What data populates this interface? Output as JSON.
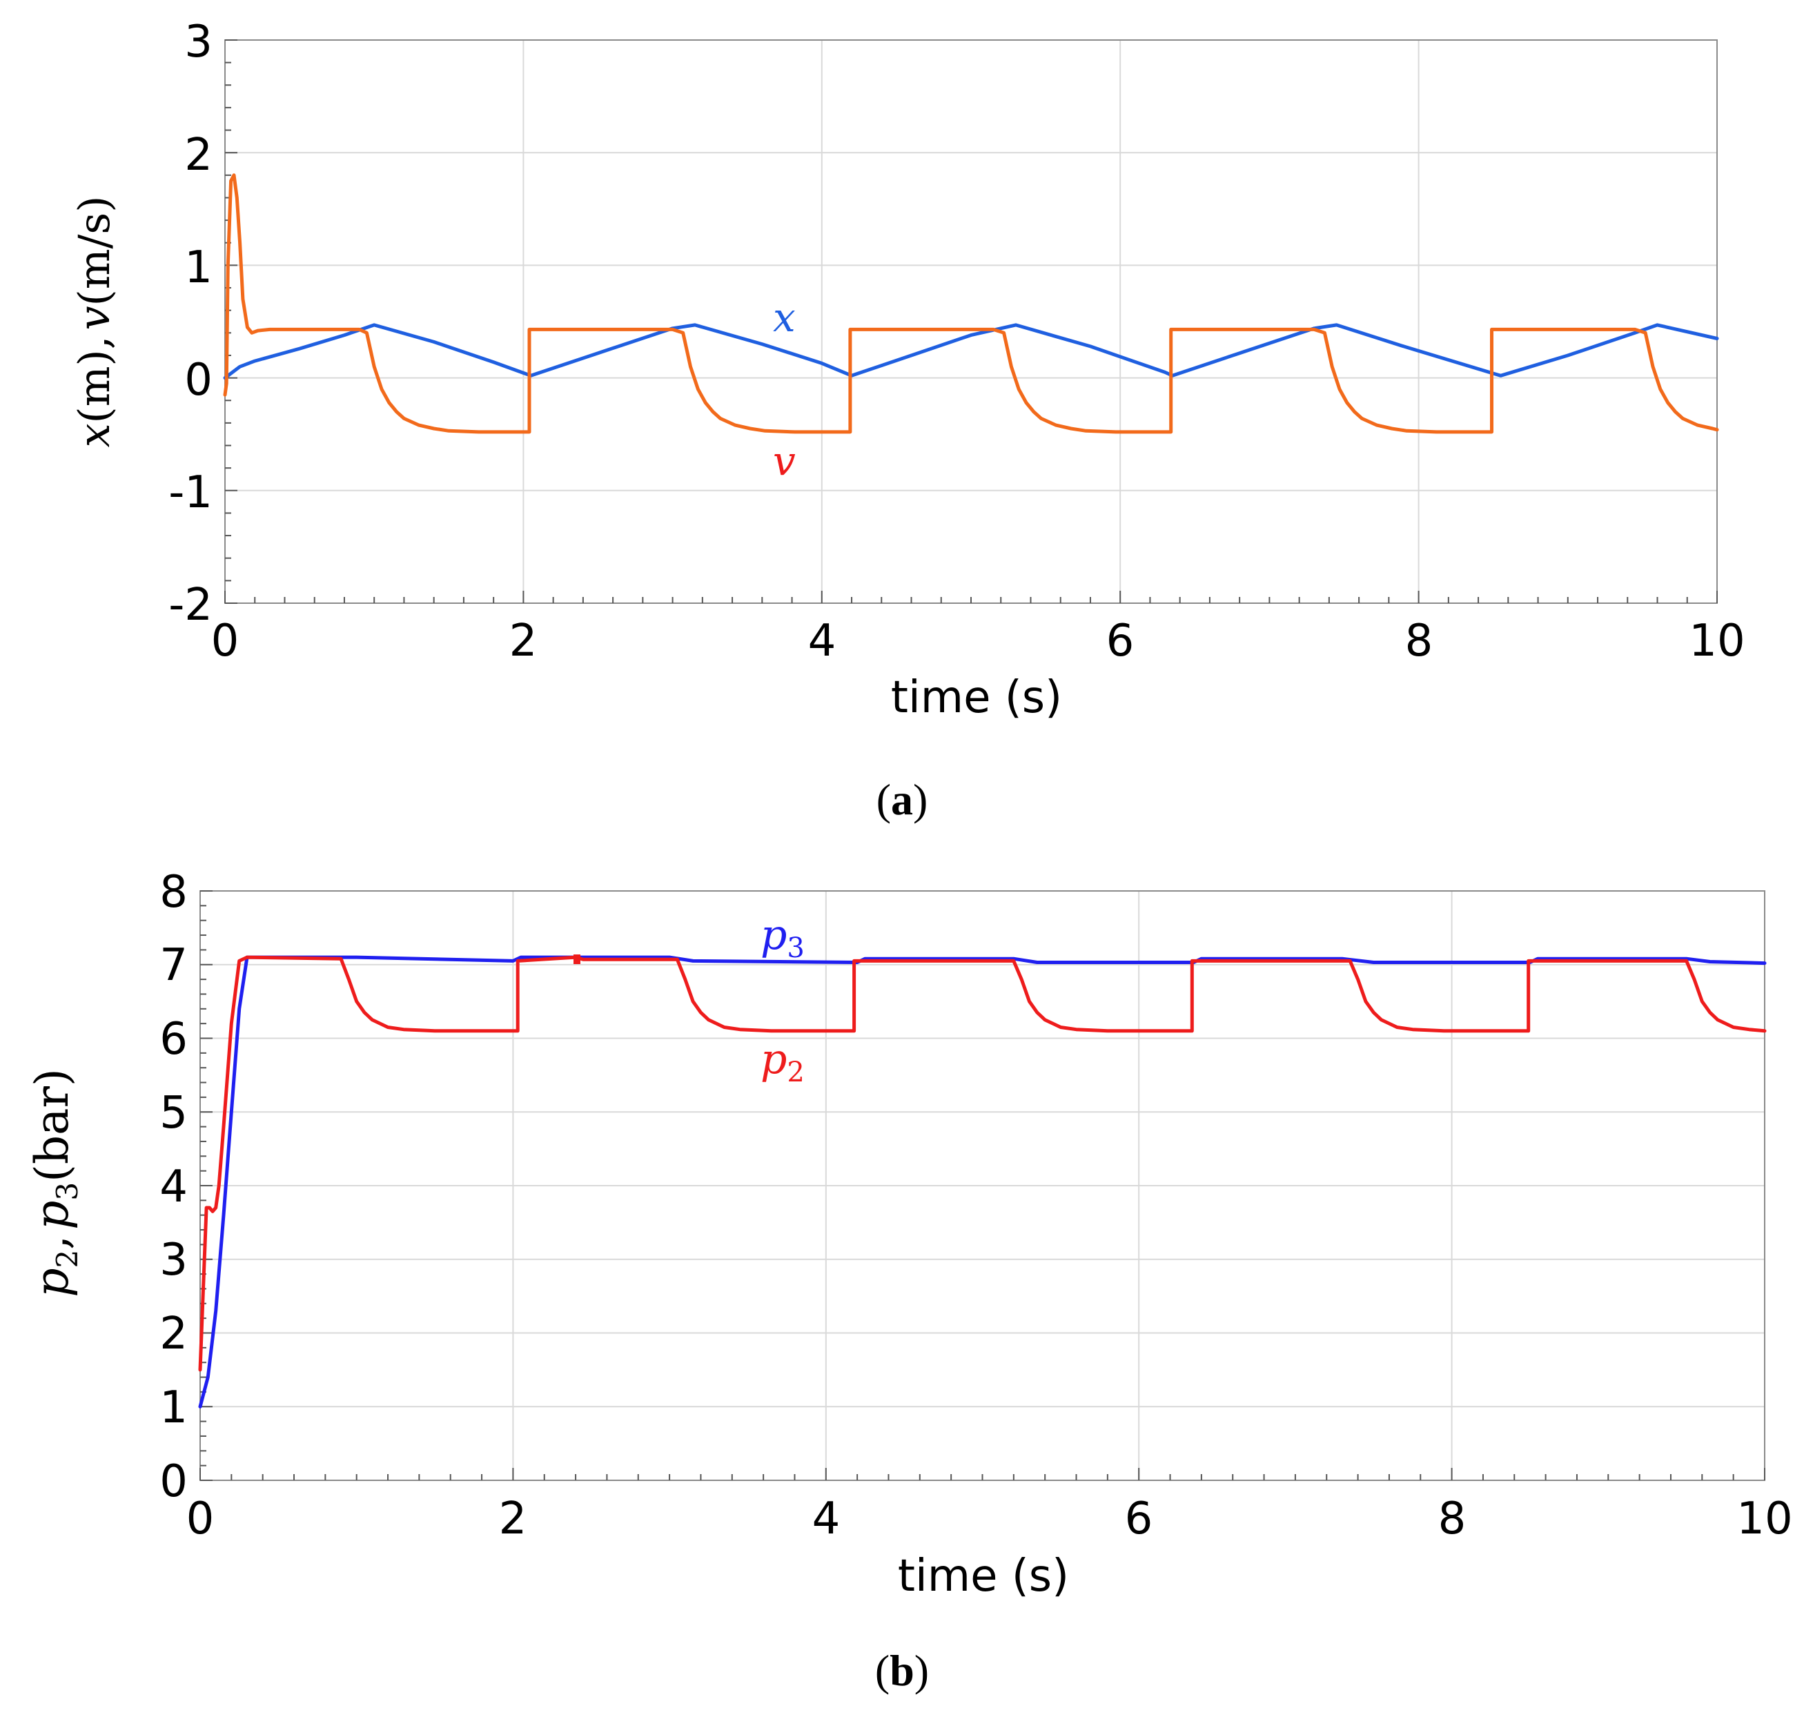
{
  "colors": {
    "blue": "#1f5fe0",
    "orange": "#f26a1b",
    "red": "#ee1c1c",
    "grid": "#d9d9d9",
    "axis": "#8a8a8a"
  },
  "chart_data": [
    {
      "type": "line",
      "panel_label": "a",
      "xlabel": "time (s)",
      "ylabel": {
        "x": "x",
        "v": "v",
        "m": "m",
        "ms": "m/s",
        "comma": ","
      },
      "xlim": [
        0,
        10
      ],
      "ylim": [
        -2,
        3
      ],
      "xticks": [
        "0",
        "2",
        "4",
        "6",
        "8",
        "10"
      ],
      "yticks": [
        "-2",
        "-1",
        "0",
        "1",
        "2",
        "3"
      ],
      "grid": true,
      "series": [
        {
          "name": "x",
          "label": "x",
          "color": "#1f5fe0",
          "x": [
            0,
            0.1,
            0.2,
            0.5,
            0.8,
            1.0,
            1.4,
            1.8,
            2.05,
            2.5,
            3.0,
            3.15,
            3.6,
            4.0,
            4.2,
            4.6,
            5.0,
            5.3,
            5.8,
            6.3,
            6.35,
            6.8,
            7.3,
            7.45,
            7.9,
            8.5,
            8.55,
            9.0,
            9.45,
            9.6,
            10.0
          ],
          "y": [
            0.0,
            0.1,
            0.15,
            0.26,
            0.38,
            0.47,
            0.32,
            0.14,
            0.02,
            0.22,
            0.44,
            0.47,
            0.3,
            0.13,
            0.02,
            0.2,
            0.38,
            0.47,
            0.28,
            0.05,
            0.02,
            0.22,
            0.44,
            0.47,
            0.28,
            0.04,
            0.02,
            0.2,
            0.4,
            0.47,
            0.35
          ]
        },
        {
          "name": "v",
          "label": "v",
          "color": "#f26a1b",
          "x": [
            0,
            0.01,
            0.02,
            0.04,
            0.06,
            0.08,
            0.1,
            0.12,
            0.15,
            0.18,
            0.22,
            0.3,
            0.5,
            0.9,
            0.95,
            1.0,
            1.05,
            1.1,
            1.15,
            1.2,
            1.3,
            1.4,
            1.5,
            1.7,
            1.9,
            2.04,
            2.04,
            2.1,
            3.0,
            3.07,
            3.12,
            3.17,
            3.22,
            3.27,
            3.32,
            3.42,
            3.52,
            3.62,
            3.82,
            4.19,
            4.19,
            4.3,
            5.15,
            5.22,
            5.27,
            5.32,
            5.37,
            5.42,
            5.47,
            5.57,
            5.67,
            5.77,
            5.97,
            6.34,
            6.34,
            6.4,
            7.3,
            7.37,
            7.42,
            7.47,
            7.52,
            7.57,
            7.62,
            7.72,
            7.82,
            7.92,
            8.12,
            8.49,
            8.49,
            8.6,
            9.45,
            9.52,
            9.57,
            9.62,
            9.67,
            9.72,
            9.77,
            9.87,
            9.97,
            10.0
          ],
          "y": [
            -0.15,
            -0.05,
            1.0,
            1.75,
            1.8,
            1.6,
            1.2,
            0.7,
            0.45,
            0.4,
            0.42,
            0.43,
            0.43,
            0.43,
            0.4,
            0.1,
            -0.1,
            -0.22,
            -0.3,
            -0.36,
            -0.42,
            -0.45,
            -0.47,
            -0.48,
            -0.48,
            -0.48,
            0.43,
            0.43,
            0.43,
            0.4,
            0.1,
            -0.1,
            -0.22,
            -0.3,
            -0.36,
            -0.42,
            -0.45,
            -0.47,
            -0.48,
            -0.48,
            0.43,
            0.43,
            0.43,
            0.4,
            0.1,
            -0.1,
            -0.22,
            -0.3,
            -0.36,
            -0.42,
            -0.45,
            -0.47,
            -0.48,
            -0.48,
            0.43,
            0.43,
            0.43,
            0.4,
            0.1,
            -0.1,
            -0.22,
            -0.3,
            -0.36,
            -0.42,
            -0.45,
            -0.47,
            -0.48,
            -0.48,
            0.43,
            0.43,
            0.43,
            0.4,
            0.1,
            -0.1,
            -0.22,
            -0.3,
            -0.36,
            -0.42,
            -0.45,
            -0.46
          ]
        }
      ]
    },
    {
      "type": "line",
      "panel_label": "b",
      "xlabel": "time (s)",
      "ylabel": {
        "p": "p",
        "sub2": "2",
        "sub3": "3",
        "comma": ",",
        "bar": "bar"
      },
      "xlim": [
        0,
        10
      ],
      "ylim": [
        0,
        8
      ],
      "xticks": [
        "0",
        "2",
        "4",
        "6",
        "8",
        "10"
      ],
      "yticks": [
        "0",
        "1",
        "2",
        "3",
        "4",
        "5",
        "6",
        "7",
        "8"
      ],
      "grid": true,
      "series": [
        {
          "name": "p3",
          "label": "p",
          "label_sub": "3",
          "color": "#1f1ff0",
          "x": [
            0,
            0.05,
            0.1,
            0.15,
            0.2,
            0.25,
            0.3,
            1.0,
            2.0,
            2.05,
            3.0,
            3.15,
            4.2,
            4.25,
            5.2,
            5.35,
            6.35,
            6.4,
            7.3,
            7.5,
            8.5,
            8.55,
            9.5,
            9.65,
            10.0
          ],
          "y": [
            1.0,
            1.4,
            2.3,
            3.6,
            5.0,
            6.4,
            7.1,
            7.1,
            7.05,
            7.1,
            7.1,
            7.05,
            7.03,
            7.08,
            7.08,
            7.03,
            7.03,
            7.08,
            7.08,
            7.03,
            7.03,
            7.08,
            7.08,
            7.04,
            7.02
          ]
        },
        {
          "name": "p2",
          "label": "p",
          "label_sub": "2",
          "color": "#ee1c1c",
          "x": [
            0,
            0.02,
            0.04,
            0.06,
            0.08,
            0.1,
            0.12,
            0.15,
            0.2,
            0.25,
            0.3,
            0.9,
            0.95,
            1.0,
            1.05,
            1.1,
            1.2,
            1.3,
            1.5,
            1.8,
            2.03,
            2.03,
            2.4,
            2.45,
            3.05,
            3.1,
            3.15,
            3.2,
            3.25,
            3.35,
            3.45,
            3.65,
            3.95,
            4.18,
            4.18,
            5.2,
            5.25,
            5.3,
            5.35,
            5.4,
            5.5,
            5.6,
            5.8,
            6.1,
            6.34,
            6.34,
            7.35,
            7.4,
            7.45,
            7.5,
            7.55,
            7.65,
            7.75,
            7.95,
            8.25,
            8.49,
            8.49,
            9.5,
            9.55,
            9.6,
            9.65,
            9.7,
            9.8,
            9.9,
            10.0
          ],
          "y": [
            1.5,
            2.6,
            3.7,
            3.7,
            3.65,
            3.7,
            4.0,
            4.8,
            6.2,
            7.05,
            7.1,
            7.08,
            6.8,
            6.5,
            6.35,
            6.25,
            6.15,
            6.12,
            6.1,
            6.1,
            6.1,
            7.05,
            7.1,
            7.07,
            7.07,
            6.8,
            6.5,
            6.35,
            6.25,
            6.15,
            6.12,
            6.1,
            6.1,
            6.1,
            7.05,
            7.05,
            6.8,
            6.5,
            6.35,
            6.25,
            6.15,
            6.12,
            6.1,
            6.1,
            6.1,
            7.05,
            7.05,
            6.8,
            6.5,
            6.35,
            6.25,
            6.15,
            6.12,
            6.1,
            6.1,
            6.1,
            7.05,
            7.05,
            6.8,
            6.5,
            6.35,
            6.25,
            6.15,
            6.12,
            6.1
          ]
        }
      ]
    }
  ]
}
